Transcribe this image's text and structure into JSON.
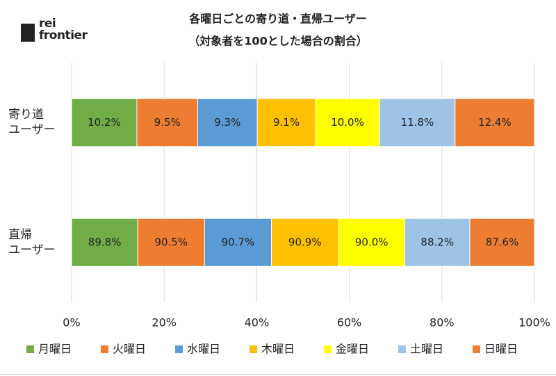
{
  "logo": "rei\nfrontier",
  "chart_data": {
    "type": "bar",
    "orientation": "horizontal",
    "stacking": "percent",
    "title": "各曜日ごとの寄り道・直帰ユーザー",
    "subtitle": "（対象者を100とした場合の割合）",
    "categories": [
      "寄り道\nユーザー",
      "直帰\nユーザー"
    ],
    "series": [
      {
        "name": "月曜日",
        "color": "#70ad47",
        "values": [
          10.2,
          89.8
        ],
        "value_labels": [
          "10.2%",
          "89.8%"
        ]
      },
      {
        "name": "火曜日",
        "color": "#ed7d31",
        "values": [
          9.5,
          90.5
        ],
        "value_labels": [
          "9.5%",
          "90.5%"
        ]
      },
      {
        "name": "水曜日",
        "color": "#5b9bd5",
        "values": [
          9.3,
          90.7
        ],
        "value_labels": [
          "9.3%",
          "90.7%"
        ]
      },
      {
        "name": "木曜日",
        "color": "#ffc000",
        "values": [
          9.1,
          90.9
        ],
        "value_labels": [
          "9.1%",
          "90.9%"
        ]
      },
      {
        "name": "金曜日",
        "color": "#ffff00",
        "values": [
          10.0,
          90.0
        ],
        "value_labels": [
          "10.0%",
          "90.0%"
        ]
      },
      {
        "name": "土曜日",
        "color": "#9dc3e6",
        "values": [
          11.8,
          88.2
        ],
        "value_labels": [
          "11.8%",
          "88.2%"
        ]
      },
      {
        "name": "日曜日",
        "color": "#ed7d31",
        "values": [
          12.4,
          87.6
        ],
        "value_labels": [
          "12.4%",
          "87.6%"
        ]
      }
    ],
    "xlim": [
      0,
      100
    ],
    "xticks": [
      {
        "value": 0,
        "label": "0%"
      },
      {
        "value": 20,
        "label": "20%"
      },
      {
        "value": 40,
        "label": "40%"
      },
      {
        "value": 60,
        "label": "60%"
      },
      {
        "value": 80,
        "label": "80%"
      },
      {
        "value": 100,
        "label": "100%"
      }
    ],
    "grid": true,
    "legend": "bottom"
  }
}
